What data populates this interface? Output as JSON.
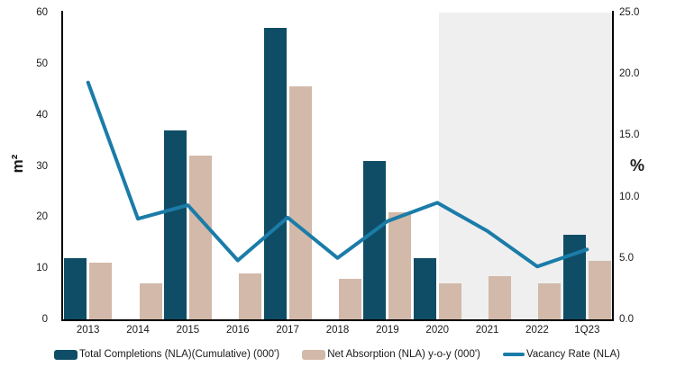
{
  "chart_data": {
    "type": "combo",
    "categories": [
      "2013",
      "2014",
      "2015",
      "2016",
      "2017",
      "2018",
      "2019",
      "2020",
      "2021",
      "2022",
      "1Q23"
    ],
    "series": [
      {
        "name": "Total Completions (NLA)(Cumulative) (000')",
        "type": "bar",
        "axis": "left",
        "color": "#0f4d66",
        "values": [
          12,
          0,
          37,
          0,
          57,
          0,
          31,
          12,
          0,
          0,
          16.5
        ]
      },
      {
        "name": "Net Absorption (NLA) y-o-y (000')",
        "type": "bar",
        "axis": "left",
        "color": "#d2b9a9",
        "values": [
          11,
          7,
          32,
          9,
          45.5,
          8,
          21,
          7,
          8.5,
          7,
          11.5
        ]
      },
      {
        "name": "Vacancy Rate (NLA)",
        "type": "line",
        "axis": "right",
        "color": "#1a7ca8",
        "values": [
          19.3,
          8.2,
          9.3,
          4.8,
          8.3,
          5.0,
          8.0,
          9.5,
          7.2,
          4.3,
          5.7
        ]
      }
    ],
    "left_axis": {
      "title": "m²",
      "min": 0,
      "max": 60,
      "ticks": [
        "60",
        "50",
        "40",
        "30",
        "20",
        "10",
        "0"
      ]
    },
    "right_axis": {
      "title": "%",
      "min": 0,
      "max": 25,
      "ticks": [
        "25.0",
        "20.0",
        "15.0",
        "10.0",
        "5.0",
        "0.0"
      ]
    },
    "forecast_region": {
      "start_category": "2021",
      "start_fraction": 0.685,
      "color": "#efefef"
    },
    "grid": false,
    "legend_position": "bottom"
  }
}
